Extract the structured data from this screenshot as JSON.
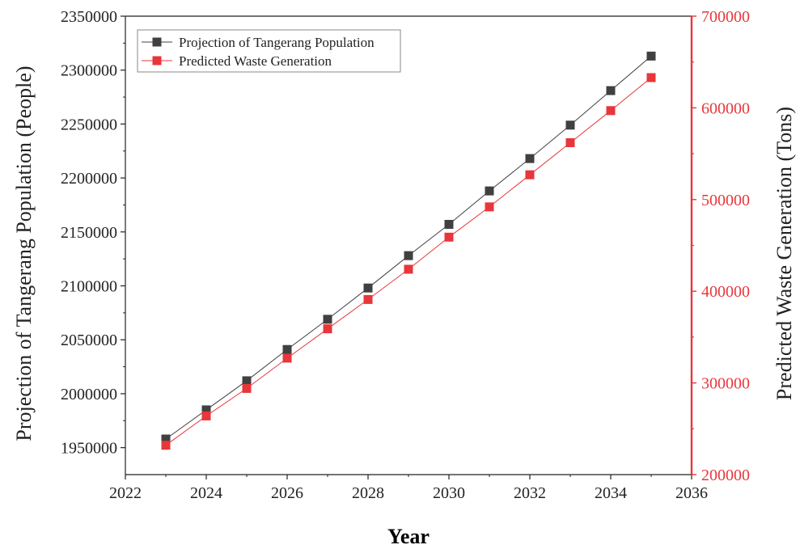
{
  "chart_data": {
    "type": "line",
    "xlabel": "Year",
    "ylabel_left": "Projection of Tangerang Population (People)",
    "ylabel_right": "Predicted Waste Generation (Tons)",
    "xlim": [
      2022,
      2036
    ],
    "xticks": [
      2022,
      2024,
      2026,
      2028,
      2030,
      2032,
      2034,
      2036
    ],
    "ylim_left": [
      1925000,
      2350000
    ],
    "yticks_left": [
      1950000,
      2000000,
      2050000,
      2100000,
      2150000,
      2200000,
      2250000,
      2300000,
      2350000
    ],
    "ylim_right": [
      200000,
      700000
    ],
    "yticks_right": [
      200000,
      300000,
      400000,
      500000,
      600000,
      700000
    ],
    "x": [
      2023,
      2024,
      2025,
      2026,
      2027,
      2028,
      2029,
      2030,
      2031,
      2032,
      2033,
      2034,
      2035
    ],
    "series": [
      {
        "name": "Projection of Tangerang Population",
        "axis": "left",
        "color": "#404040",
        "marker": "square",
        "values": [
          1958000,
          1985000,
          2012000,
          2041000,
          2069000,
          2098000,
          2128000,
          2157000,
          2188000,
          2218000,
          2249000,
          2281000,
          2313000
        ]
      },
      {
        "name": "Predicted Waste Generation",
        "axis": "right",
        "color": "#e8363b",
        "marker": "square",
        "values": [
          232000,
          264000,
          294000,
          327000,
          359000,
          391000,
          424000,
          459000,
          492000,
          527000,
          562000,
          597000,
          633000
        ]
      }
    ],
    "legend_position": "top-left",
    "grid": false,
    "right_axis_color": "#e8363b"
  }
}
